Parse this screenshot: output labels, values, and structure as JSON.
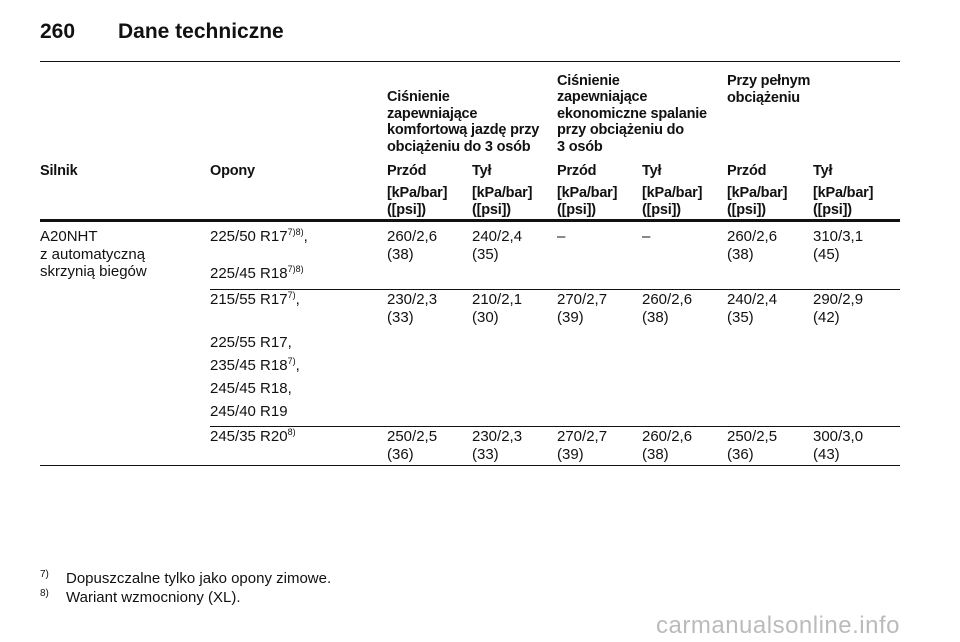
{
  "header": {
    "page_number": "260",
    "title": "Dane techniczne"
  },
  "table": {
    "group_headers": [
      "Ciśnienie\nzapewniające\nkomfortową jazdę przy\nobciążeniu do 3 osób",
      "Ciśnienie\nzapewniające\nekonomiczne spalanie\nprzy obciążeniu do\n3 osób",
      "Przy pełnym\nobciążeniu"
    ],
    "columns": [
      "Silnik",
      "Opony",
      "Przód",
      "Tył",
      "Przód",
      "Tył",
      "Przód",
      "Tył"
    ],
    "units": [
      "[kPa/bar]\n([psi])",
      "[kPa/bar]\n([psi])",
      "[kPa/bar]\n([psi])",
      "[kPa/bar]\n([psi])",
      "[kPa/bar]\n([psi])",
      "[kPa/bar]\n([psi])"
    ],
    "engine": "A20NHT\nz automatyczną\nskrzynią biegów",
    "rows": [
      {
        "tyres": [
          {
            "size": "225/50 R17",
            "note": "7)8)",
            "suffix": ","
          },
          {
            "size": "225/45 R18",
            "note": "7)8)"
          }
        ],
        "values": [
          "260/2,6\n(38)",
          "240/2,4\n(35)",
          "–",
          "–",
          "260/2,6\n(38)",
          "310/3,1\n(45)"
        ]
      },
      {
        "tyres": [
          {
            "size": "215/55 R17",
            "note": "7)",
            "suffix": ","
          },
          {
            "size": "225/55 R17,"
          },
          {
            "size": "235/45 R18",
            "note": "7)",
            "suffix": ","
          },
          {
            "size": "245/45 R18,"
          },
          {
            "size": "245/40 R19"
          }
        ],
        "values": [
          "230/2,3\n(33)",
          "210/2,1\n(30)",
          "270/2,7\n(39)",
          "260/2,6\n(38)",
          "240/2,4\n(35)",
          "290/2,9\n(42)"
        ]
      },
      {
        "tyres": [
          {
            "size": "245/35 R20",
            "note": "8)"
          }
        ],
        "values": [
          "250/2,5\n(36)",
          "230/2,3\n(33)",
          "270/2,7\n(39)",
          "260/2,6\n(38)",
          "250/2,5\n(36)",
          "300/3,0\n(43)"
        ]
      }
    ]
  },
  "footnotes": [
    {
      "mark": "7)",
      "text": "Dopuszczalne tylko jako opony zimowe."
    },
    {
      "mark": "8)",
      "text": "Wariant wzmocniony (XL)."
    }
  ],
  "watermark": "carmanualsonline.info"
}
